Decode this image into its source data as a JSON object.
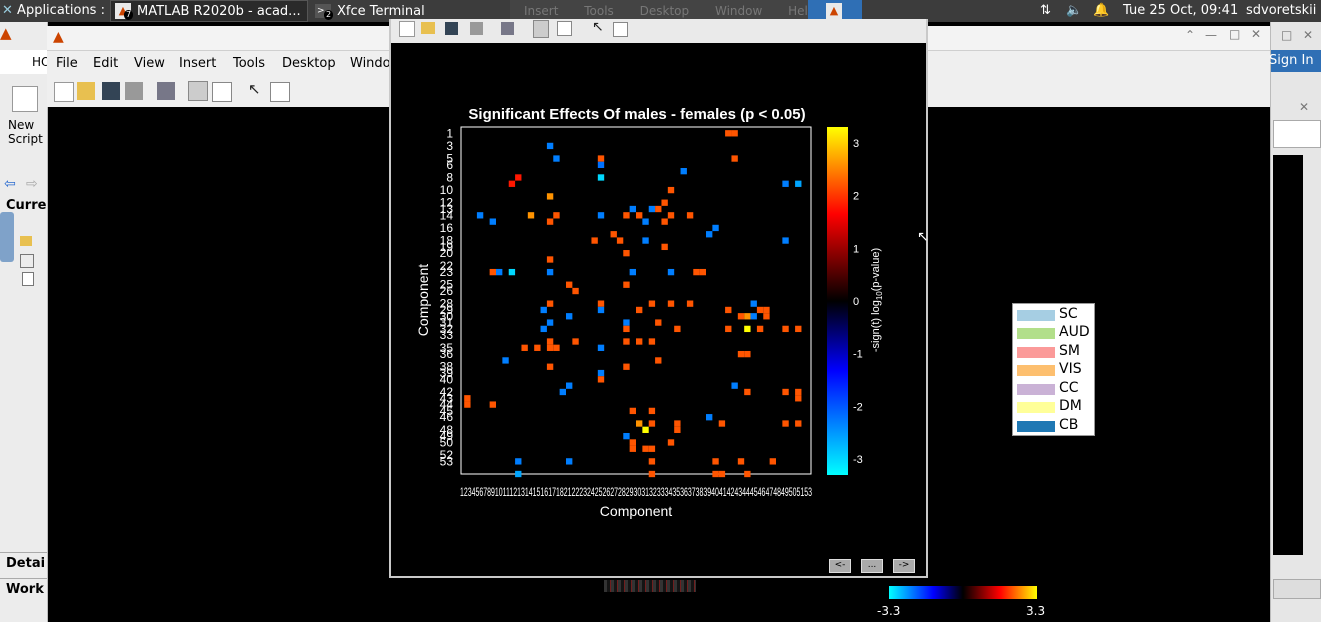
{
  "panel": {
    "applications_label": "Applications :",
    "task1_label": "MATLAB R2020b - acad...",
    "task1_badge": "7",
    "task2_label": "Xfce Terminal",
    "task2_badge": "2",
    "clock": "Tue 25 Oct, 09:41",
    "user": "sdvoretskii",
    "ghost_menu": [
      "Insert",
      "Tools",
      "Desktop",
      "Window",
      "Help"
    ]
  },
  "matlab": {
    "menus": [
      "File",
      "Edit",
      "View",
      "Insert",
      "Tools",
      "Desktop",
      "Windo"
    ],
    "new_script_label": "New\nScript",
    "ho_label": "HO",
    "current_label": "Curre",
    "details_label": "Detai",
    "workspace_label": "Work",
    "signin_label": "Sign In"
  },
  "figure": {
    "nav_buttons": [
      "<-",
      "...",
      "->"
    ]
  },
  "legend": {
    "items": [
      {
        "label": "SC",
        "color": "#a6cee3"
      },
      {
        "label": "AUD",
        "color": "#b2df8a"
      },
      {
        "label": "SM",
        "color": "#fb9a99"
      },
      {
        "label": "VIS",
        "color": "#fdbf6f"
      },
      {
        "label": "CC",
        "color": "#cab2d6"
      },
      {
        "label": "DM",
        "color": "#ffff99"
      },
      {
        "label": "CB",
        "color": "#1f78b4"
      }
    ]
  },
  "colorbar2": {
    "min_label": "-3.3",
    "max_label": "3.3"
  },
  "chart_data": {
    "type": "heatmap",
    "title": "Significant Effects Of males - females (p < 0.05)",
    "xlabel": "Component",
    "ylabel": "Component",
    "colorbar_label": "-sign(t) log10(p-value)",
    "colorbar_ticks": [
      3,
      2,
      1,
      0,
      -1,
      -2,
      -3
    ],
    "clim": [
      -3.3,
      3.3
    ],
    "n_components": 53,
    "y_tick_labels": [
      "1",
      "3",
      "5",
      "6",
      "8",
      "10",
      "12",
      "13",
      "14",
      "16",
      "18",
      "19",
      "20",
      "22",
      "23",
      "25",
      "26",
      "28",
      "29",
      "30",
      "31",
      "32",
      "33",
      "35",
      "36",
      "38",
      "39",
      "40",
      "42",
      "43",
      "44",
      "45",
      "46",
      "48",
      "49",
      "50",
      "52",
      "53"
    ],
    "x_tick_label_text": "1234567891011121314151617182122232425262728293031323334353637383940414243444546474849505153",
    "cells": [
      {
        "x": 42,
        "y": 1,
        "v": 2.2
      },
      {
        "x": 43,
        "y": 1,
        "v": 2.2
      },
      {
        "x": 14,
        "y": 3,
        "v": -2.3
      },
      {
        "x": 22,
        "y": 5,
        "v": 2.2
      },
      {
        "x": 15,
        "y": 5,
        "v": -2.3
      },
      {
        "x": 22,
        "y": 6,
        "v": -2.2
      },
      {
        "x": 43,
        "y": 5,
        "v": 2.2
      },
      {
        "x": 35,
        "y": 7,
        "v": -2.3
      },
      {
        "x": 22,
        "y": 8,
        "v": -3.0
      },
      {
        "x": 9,
        "y": 8,
        "v": 1.8
      },
      {
        "x": 8,
        "y": 9,
        "v": 1.8
      },
      {
        "x": 51,
        "y": 9,
        "v": -2.3
      },
      {
        "x": 53,
        "y": 9,
        "v": -2.6
      },
      {
        "x": 33,
        "y": 10,
        "v": 2.2
      },
      {
        "x": 14,
        "y": 11,
        "v": 2.6
      },
      {
        "x": 32,
        "y": 12,
        "v": 2.2
      },
      {
        "x": 27,
        "y": 13,
        "v": -2.3
      },
      {
        "x": 30,
        "y": 13,
        "v": -2.3
      },
      {
        "x": 31,
        "y": 13,
        "v": 2.2
      },
      {
        "x": 3,
        "y": 14,
        "v": -2.3
      },
      {
        "x": 11,
        "y": 14,
        "v": 2.6
      },
      {
        "x": 15,
        "y": 14,
        "v": 2.2
      },
      {
        "x": 22,
        "y": 14,
        "v": -2.3
      },
      {
        "x": 26,
        "y": 14,
        "v": 2.2
      },
      {
        "x": 28,
        "y": 14,
        "v": 2.2
      },
      {
        "x": 33,
        "y": 14,
        "v": 2.2
      },
      {
        "x": 36,
        "y": 14,
        "v": 2.2
      },
      {
        "x": 5,
        "y": 15,
        "v": -2.3
      },
      {
        "x": 14,
        "y": 15,
        "v": 2.2
      },
      {
        "x": 29,
        "y": 15,
        "v": -2.3
      },
      {
        "x": 32,
        "y": 15,
        "v": 2.2
      },
      {
        "x": 40,
        "y": 16,
        "v": -2.3
      },
      {
        "x": 24,
        "y": 17,
        "v": 2.2
      },
      {
        "x": 39,
        "y": 17,
        "v": -2.3
      },
      {
        "x": 21,
        "y": 18,
        "v": 2.2
      },
      {
        "x": 25,
        "y": 18,
        "v": 2.2
      },
      {
        "x": 29,
        "y": 18,
        "v": -2.3
      },
      {
        "x": 32,
        "y": 19,
        "v": 2.2
      },
      {
        "x": 51,
        "y": 18,
        "v": -2.3
      },
      {
        "x": 14,
        "y": 21,
        "v": 2.2
      },
      {
        "x": 26,
        "y": 20,
        "v": 2.2
      },
      {
        "x": 5,
        "y": 23,
        "v": 2.2
      },
      {
        "x": 6,
        "y": 23,
        "v": -2.3
      },
      {
        "x": 8,
        "y": 23,
        "v": -3.0
      },
      {
        "x": 14,
        "y": 23,
        "v": -2.3
      },
      {
        "x": 27,
        "y": 23,
        "v": -2.3
      },
      {
        "x": 33,
        "y": 23,
        "v": -2.3
      },
      {
        "x": 37,
        "y": 23,
        "v": 2.2
      },
      {
        "x": 38,
        "y": 23,
        "v": 2.2
      },
      {
        "x": 17,
        "y": 25,
        "v": 2.2
      },
      {
        "x": 26,
        "y": 25,
        "v": 2.2
      },
      {
        "x": 18,
        "y": 26,
        "v": 2.2
      },
      {
        "x": 14,
        "y": 28,
        "v": 2.2
      },
      {
        "x": 22,
        "y": 28,
        "v": 2.2
      },
      {
        "x": 30,
        "y": 28,
        "v": 2.2
      },
      {
        "x": 33,
        "y": 28,
        "v": 2.2
      },
      {
        "x": 36,
        "y": 28,
        "v": 2.2
      },
      {
        "x": 46,
        "y": 28,
        "v": -2.3
      },
      {
        "x": 13,
        "y": 29,
        "v": -2.3
      },
      {
        "x": 22,
        "y": 29,
        "v": -2.3
      },
      {
        "x": 28,
        "y": 29,
        "v": 2.2
      },
      {
        "x": 42,
        "y": 29,
        "v": 2.2
      },
      {
        "x": 47,
        "y": 29,
        "v": 2.2
      },
      {
        "x": 48,
        "y": 29,
        "v": 2.2
      },
      {
        "x": 17,
        "y": 30,
        "v": -2.3
      },
      {
        "x": 44,
        "y": 30,
        "v": 2.2
      },
      {
        "x": 45,
        "y": 30,
        "v": 2.6
      },
      {
        "x": 46,
        "y": 30,
        "v": -2.3
      },
      {
        "x": 48,
        "y": 30,
        "v": 2.2
      },
      {
        "x": 14,
        "y": 31,
        "v": -2.3
      },
      {
        "x": 26,
        "y": 31,
        "v": -2.3
      },
      {
        "x": 31,
        "y": 31,
        "v": 2.2
      },
      {
        "x": 13,
        "y": 32,
        "v": -2.3
      },
      {
        "x": 26,
        "y": 32,
        "v": 2.2
      },
      {
        "x": 34,
        "y": 32,
        "v": 2.2
      },
      {
        "x": 42,
        "y": 32,
        "v": 2.2
      },
      {
        "x": 45,
        "y": 32,
        "v": 3.3
      },
      {
        "x": 47,
        "y": 32,
        "v": 2.2
      },
      {
        "x": 51,
        "y": 32,
        "v": 2.2
      },
      {
        "x": 53,
        "y": 32,
        "v": 2.2
      },
      {
        "x": 14,
        "y": 34,
        "v": 2.2
      },
      {
        "x": 18,
        "y": 34,
        "v": 2.2
      },
      {
        "x": 26,
        "y": 34,
        "v": 2.2
      },
      {
        "x": 28,
        "y": 34,
        "v": 2.2
      },
      {
        "x": 30,
        "y": 34,
        "v": 2.2
      },
      {
        "x": 10,
        "y": 35,
        "v": 2.2
      },
      {
        "x": 12,
        "y": 35,
        "v": 2.2
      },
      {
        "x": 14,
        "y": 35,
        "v": 2.2
      },
      {
        "x": 15,
        "y": 35,
        "v": 2.2
      },
      {
        "x": 22,
        "y": 35,
        "v": -2.3
      },
      {
        "x": 44,
        "y": 36,
        "v": 2.2
      },
      {
        "x": 45,
        "y": 36,
        "v": 2.2
      },
      {
        "x": 7,
        "y": 37,
        "v": -2.3
      },
      {
        "x": 31,
        "y": 37,
        "v": 2.2
      },
      {
        "x": 14,
        "y": 38,
        "v": 2.2
      },
      {
        "x": 26,
        "y": 38,
        "v": 2.2
      },
      {
        "x": 22,
        "y": 39,
        "v": -2.3
      },
      {
        "x": 22,
        "y": 40,
        "v": 2.2
      },
      {
        "x": 17,
        "y": 41,
        "v": -2.3
      },
      {
        "x": 16,
        "y": 42,
        "v": -2.3
      },
      {
        "x": 43,
        "y": 41,
        "v": -2.3
      },
      {
        "x": 45,
        "y": 42,
        "v": 2.2
      },
      {
        "x": 51,
        "y": 42,
        "v": 2.2
      },
      {
        "x": 53,
        "y": 42,
        "v": 2.2
      },
      {
        "x": 53,
        "y": 43,
        "v": 2.2
      },
      {
        "x": 1,
        "y": 43,
        "v": 2.2
      },
      {
        "x": 1,
        "y": 44,
        "v": 2.2
      },
      {
        "x": 5,
        "y": 44,
        "v": 2.2
      },
      {
        "x": 27,
        "y": 45,
        "v": 2.2
      },
      {
        "x": 30,
        "y": 45,
        "v": 2.2
      },
      {
        "x": 39,
        "y": 46,
        "v": -2.3
      },
      {
        "x": 28,
        "y": 47,
        "v": 2.6
      },
      {
        "x": 30,
        "y": 47,
        "v": 2.2
      },
      {
        "x": 34,
        "y": 47,
        "v": 2.2
      },
      {
        "x": 41,
        "y": 47,
        "v": 2.2
      },
      {
        "x": 51,
        "y": 47,
        "v": 2.2
      },
      {
        "x": 53,
        "y": 47,
        "v": 2.2
      },
      {
        "x": 29,
        "y": 48,
        "v": 3.3
      },
      {
        "x": 34,
        "y": 48,
        "v": 2.2
      },
      {
        "x": 26,
        "y": 49,
        "v": -2.3
      },
      {
        "x": 27,
        "y": 50,
        "v": 2.2
      },
      {
        "x": 33,
        "y": 50,
        "v": 2.2
      },
      {
        "x": 27,
        "y": 51,
        "v": 2.2
      },
      {
        "x": 29,
        "y": 51,
        "v": 2.2
      },
      {
        "x": 30,
        "y": 51,
        "v": 2.2
      },
      {
        "x": 9,
        "y": 53,
        "v": -2.3
      },
      {
        "x": 17,
        "y": 53,
        "v": -2.3
      },
      {
        "x": 30,
        "y": 53,
        "v": 2.2
      },
      {
        "x": 40,
        "y": 53,
        "v": 2.2
      },
      {
        "x": 44,
        "y": 53,
        "v": 2.2
      },
      {
        "x": 49,
        "y": 53,
        "v": 2.2
      },
      {
        "x": 9,
        "y": 55,
        "v": -2.6
      },
      {
        "x": 30,
        "y": 55,
        "v": 2.2
      },
      {
        "x": 40,
        "y": 55,
        "v": 2.2
      },
      {
        "x": 41,
        "y": 55,
        "v": 2.2
      },
      {
        "x": 45,
        "y": 55,
        "v": 2.2
      }
    ]
  }
}
